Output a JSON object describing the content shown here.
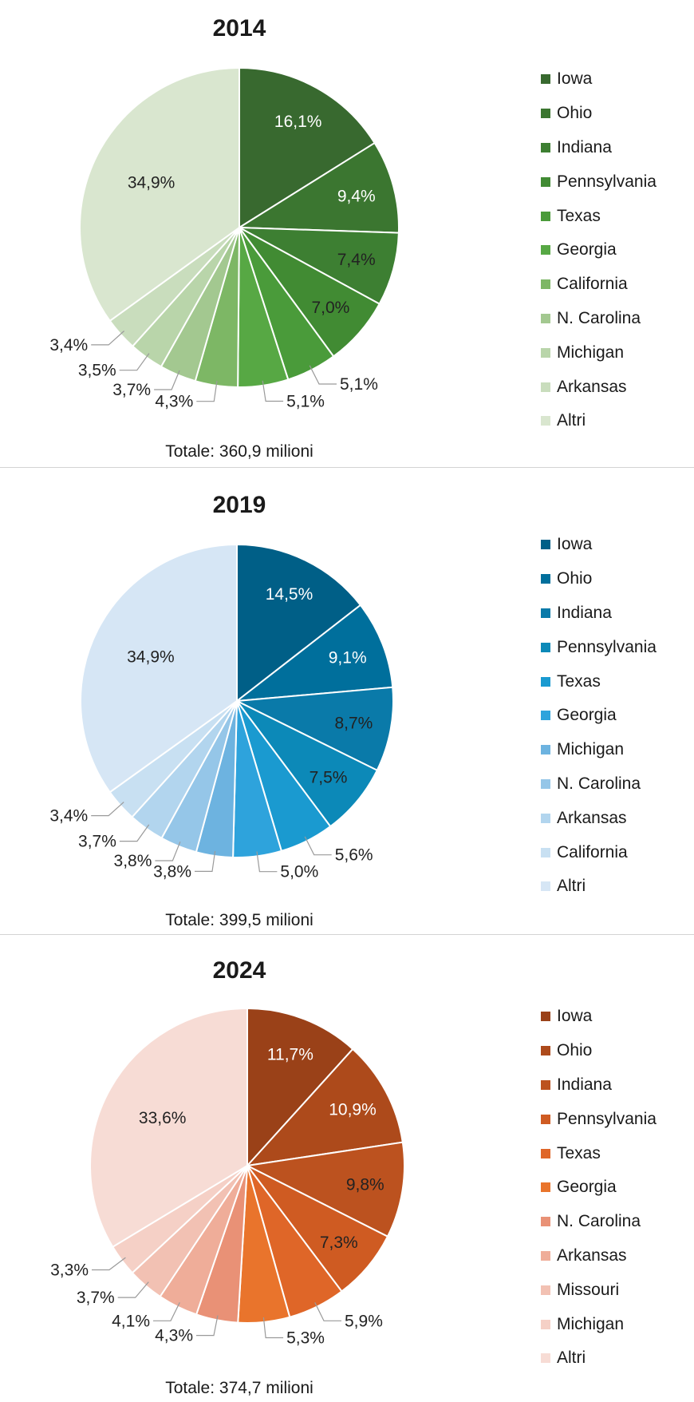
{
  "chart_data": [
    {
      "type": "pie",
      "title": "2014",
      "total_label": "Totale: 360,9 milioni",
      "slices": [
        {
          "name": "Iowa",
          "value": 16.1,
          "label": "16,1%",
          "color": "#38692f"
        },
        {
          "name": "Ohio",
          "value": 9.4,
          "label": "9,4%",
          "color": "#3b7630"
        },
        {
          "name": "Indiana",
          "value": 7.4,
          "label": "7,4%",
          "color": "#3d7f32"
        },
        {
          "name": "Pennsylvania",
          "value": 7.0,
          "label": "7,0%",
          "color": "#418b33"
        },
        {
          "name": "Texas",
          "value": 5.1,
          "label": "5,1%",
          "color": "#4a9b3a"
        },
        {
          "name": "Georgia",
          "value": 5.1,
          "label": "5,1%",
          "color": "#57a844"
        },
        {
          "name": "California",
          "value": 4.3,
          "label": "4,3%",
          "color": "#7db765"
        },
        {
          "name": "N. Carolina",
          "value": 3.7,
          "label": "3,7%",
          "color": "#a3c890"
        },
        {
          "name": "Michigan",
          "value": 3.5,
          "label": "3,5%",
          "color": "#b9d5aa"
        },
        {
          "name": "Arkansas",
          "value": 3.4,
          "label": "3,4%",
          "color": "#c9ddbd"
        },
        {
          "name": "Altri",
          "value": 34.9,
          "label": "34,9%",
          "color": "#d9e6cf"
        }
      ]
    },
    {
      "type": "pie",
      "title": "2019",
      "total_label": "Totale: 399,5 milioni",
      "slices": [
        {
          "name": "Iowa",
          "value": 14.5,
          "label": "14,5%",
          "color": "#005f87"
        },
        {
          "name": "Ohio",
          "value": 9.1,
          "label": "9,1%",
          "color": "#006f9c"
        },
        {
          "name": "Indiana",
          "value": 8.7,
          "label": "8,7%",
          "color": "#0a7aa9"
        },
        {
          "name": "Pennsylvania",
          "value": 7.5,
          "label": "7,5%",
          "color": "#0c89b8"
        },
        {
          "name": "Texas",
          "value": 5.6,
          "label": "5,6%",
          "color": "#1a9ad0"
        },
        {
          "name": "Georgia",
          "value": 5.0,
          "label": "5,0%",
          "color": "#2ea3dc"
        },
        {
          "name": "Michigan",
          "value": 3.8,
          "label": "3,8%",
          "color": "#6db3e0"
        },
        {
          "name": "N. Carolina",
          "value": 3.8,
          "label": "3,8%",
          "color": "#95c6e8"
        },
        {
          "name": "Arkansas",
          "value": 3.7,
          "label": "3,7%",
          "color": "#b2d5ee"
        },
        {
          "name": "California",
          "value": 3.4,
          "label": "3,4%",
          "color": "#c8e0f2"
        },
        {
          "name": "Altri",
          "value": 34.9,
          "label": "34,9%",
          "color": "#d6e6f5"
        }
      ]
    },
    {
      "type": "pie",
      "title": "2024",
      "total_label": "Totale: 374,7 milioni",
      "slices": [
        {
          "name": "Iowa",
          "value": 11.7,
          "label": "11,7%",
          "color": "#9a4118"
        },
        {
          "name": "Ohio",
          "value": 10.9,
          "label": "10,9%",
          "color": "#ad4a1b"
        },
        {
          "name": "Indiana",
          "value": 9.8,
          "label": "9,8%",
          "color": "#bc521f"
        },
        {
          "name": "Pennsylvania",
          "value": 7.3,
          "label": "7,3%",
          "color": "#cf5b22"
        },
        {
          "name": "Texas",
          "value": 5.9,
          "label": "5,9%",
          "color": "#df6628"
        },
        {
          "name": "Georgia",
          "value": 5.3,
          "label": "5,3%",
          "color": "#e9742c"
        },
        {
          "name": "N. Carolina",
          "value": 4.3,
          "label": "4,3%",
          "color": "#e99176"
        },
        {
          "name": "Arkansas",
          "value": 4.1,
          "label": "4,1%",
          "color": "#efad99"
        },
        {
          "name": "Missouri",
          "value": 3.7,
          "label": "3,7%",
          "color": "#f2c1b3"
        },
        {
          "name": "Michigan",
          "value": 3.3,
          "label": "3,3%",
          "color": "#f5d0c6"
        },
        {
          "name": "Altri",
          "value": 33.6,
          "label": "33,6%",
          "color": "#f7dcd5"
        }
      ]
    }
  ]
}
